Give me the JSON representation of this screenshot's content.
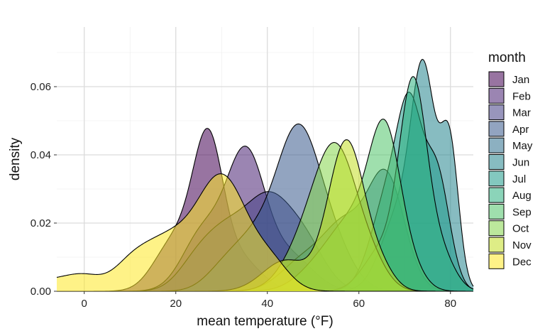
{
  "chart_data": {
    "type": "area",
    "xlabel": "mean temperature (°F)",
    "ylabel": "density",
    "xlim": [
      -6,
      85
    ],
    "ylim": [
      0,
      0.0775
    ],
    "x_ticks": [
      0,
      20,
      40,
      60,
      80
    ],
    "y_ticks": [
      0.0,
      0.02,
      0.04,
      0.06
    ],
    "y_tick_labels": [
      "0.00",
      "0.02",
      "0.04",
      "0.06"
    ],
    "grid": true,
    "legend_title": "month",
    "legend_position": "right",
    "fill_opacity": 0.55,
    "series": [
      {
        "name": "Jan",
        "color": "#440154",
        "components": [
          [
            0.033,
            27.2,
            3.1
          ],
          [
            0.017,
            23.0,
            5.0
          ],
          [
            0.007,
            33.0,
            4.0
          ],
          [
            0.004,
            17.0,
            3.5
          ],
          [
            0.003,
            37.0,
            4.0
          ]
        ]
      },
      {
        "name": "Feb",
        "color": "#482173",
        "components": [
          [
            0.039,
            35.3,
            4.2
          ],
          [
            0.017,
            26.0,
            4.5
          ],
          [
            0.01,
            45.0,
            5.0
          ]
        ]
      },
      {
        "name": "Mar",
        "color": "#433E85",
        "components": [
          [
            0.021,
            40.5,
            4.5
          ],
          [
            0.014,
            48.0,
            4.5
          ],
          [
            0.018,
            31.5,
            5.5
          ],
          [
            0.005,
            24.0,
            4.0
          ]
        ]
      },
      {
        "name": "Apr",
        "color": "#38598C",
        "components": [
          [
            0.041,
            46.8,
            4.5
          ],
          [
            0.013,
            54.0,
            4.5
          ],
          [
            0.016,
            38.0,
            5.5
          ],
          [
            0.004,
            30.0,
            4.0
          ]
        ]
      },
      {
        "name": "May",
        "color": "#2D708E",
        "components": [
          [
            0.033,
            66.0,
            4.0
          ],
          [
            0.018,
            57.0,
            4.5
          ],
          [
            0.009,
            48.0,
            5.0
          ]
        ]
      },
      {
        "name": "Jun",
        "color": "#25858E",
        "components": [
          [
            0.057,
            74.2,
            2.6
          ],
          [
            0.023,
            69.0,
            4.0
          ],
          [
            0.042,
            79.8,
            2.0
          ]
        ]
      },
      {
        "name": "Jul",
        "color": "#1E9B8A",
        "components": [
          [
            0.037,
            71.3,
            2.6
          ],
          [
            0.03,
            67.0,
            4.0
          ],
          [
            0.034,
            77.0,
            2.8
          ]
        ]
      },
      {
        "name": "Aug",
        "color": "#2BB07F",
        "components": [
          [
            0.059,
            71.9,
            3.0
          ],
          [
            0.012,
            65.0,
            4.0
          ],
          [
            0.01,
            78.0,
            3.0
          ]
        ]
      },
      {
        "name": "Sep",
        "color": "#51C56A",
        "components": [
          [
            0.044,
            65.8,
            3.5
          ],
          [
            0.017,
            59.0,
            4.5
          ],
          [
            0.008,
            52.0,
            5.0
          ],
          [
            0.004,
            72.0,
            3.0
          ]
        ]
      },
      {
        "name": "Oct",
        "color": "#85D54A",
        "components": [
          [
            0.036,
            55.5,
            4.5
          ],
          [
            0.015,
            49.0,
            5.0
          ],
          [
            0.006,
            63.0,
            3.5
          ]
        ]
      },
      {
        "name": "Nov",
        "color": "#C2DF23",
        "components": [
          [
            0.044,
            57.3,
            4.0
          ],
          [
            0.009,
            44.0,
            5.0
          ],
          [
            0.005,
            65.0,
            3.0
          ]
        ]
      },
      {
        "name": "Dec",
        "color": "#FDE725",
        "components": [
          [
            0.033,
            30.2,
            5.5
          ],
          [
            0.014,
            18.0,
            5.5
          ],
          [
            0.006,
            10.0,
            4.0
          ],
          [
            0.004,
            0.0,
            4.0
          ],
          [
            0.003,
            -8.0,
            5.0
          ],
          [
            0.007,
            41.0,
            4.0
          ]
        ]
      }
    ]
  }
}
